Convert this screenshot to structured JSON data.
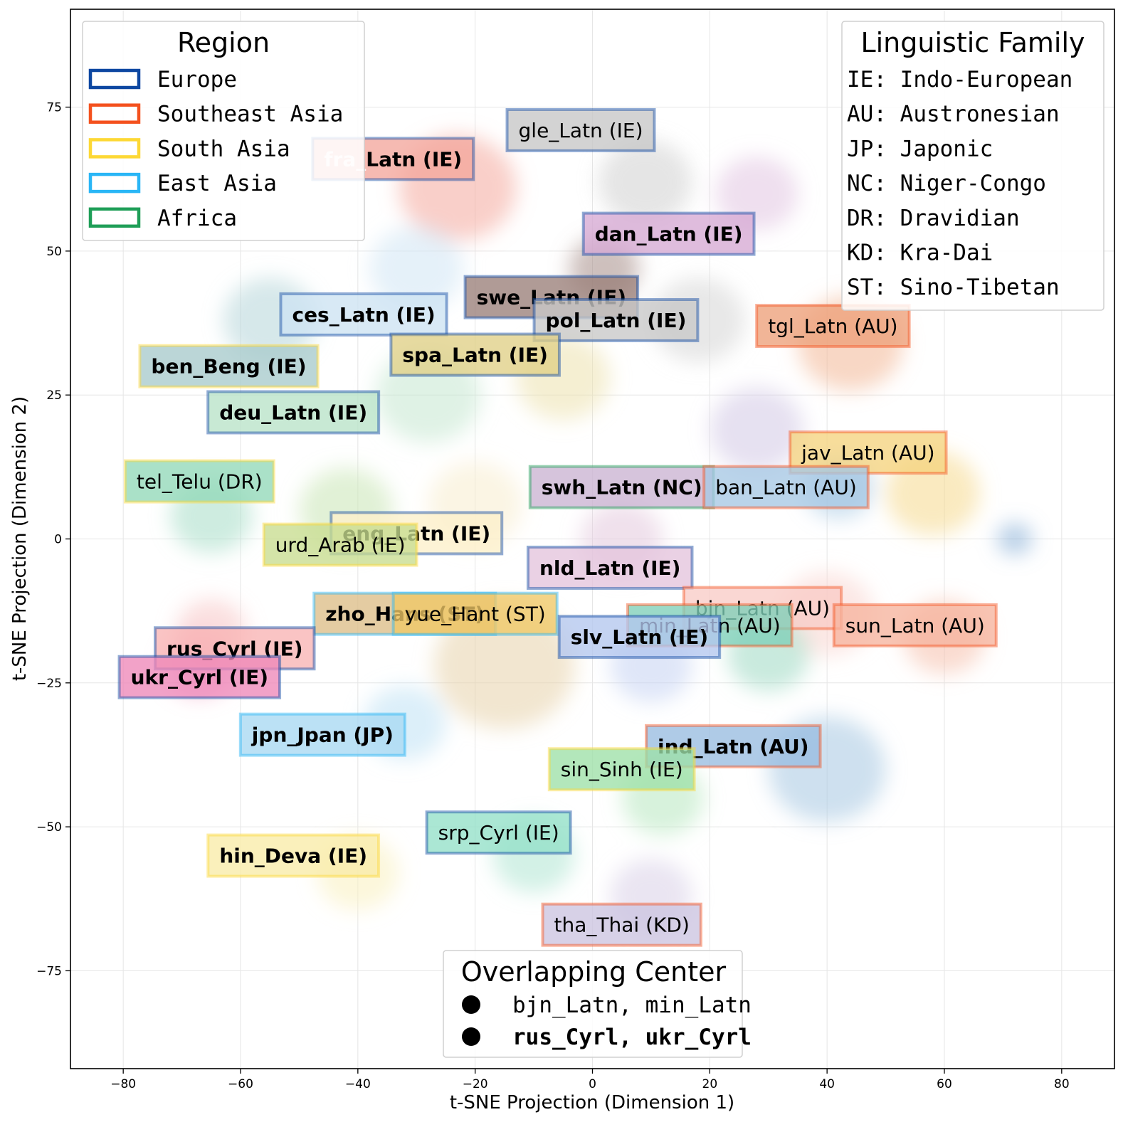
{
  "chart_data": {
    "type": "scatter",
    "subtype": "t-SNE density projection with language-cluster labels",
    "xlabel": "t-SNE Projection (Dimension 1)",
    "ylabel": "t-SNE Projection (Dimension 2)",
    "xlim": [
      -89,
      89
    ],
    "ylim": [
      -92,
      92
    ],
    "xticks": [
      -80,
      -60,
      -40,
      -20,
      0,
      20,
      40,
      60,
      80
    ],
    "yticks": [
      -75,
      -50,
      -25,
      0,
      25,
      50,
      75
    ],
    "grid": true,
    "region_colors": {
      "Europe": "#0d47a1",
      "Southeast Asia": "#f4511e",
      "South Asia": "#fdd835",
      "East Asia": "#29b6f6",
      "Africa": "#1e9e57"
    },
    "clusters": [
      {
        "label": "fra_Latn (IE)",
        "x": -34,
        "y": 66,
        "bold": true,
        "fill": "#f4a79c",
        "region": "Europe",
        "faded_prefix": true
      },
      {
        "label": "gle_Latn (IE)",
        "x": -2,
        "y": 71,
        "bold": false,
        "fill": "#c6c6c6",
        "region": "Europe"
      },
      {
        "label": "dan_Latn (IE)",
        "x": 13,
        "y": 53,
        "bold": true,
        "fill": "#d6a9d4",
        "region": "Europe"
      },
      {
        "label": "swe_Latn (IE)",
        "x": -7,
        "y": 42,
        "bold": true,
        "fill": "#9a7f79",
        "region": "Europe"
      },
      {
        "label": "ces_Latn (IE)",
        "x": -39,
        "y": 39,
        "bold": true,
        "fill": "#cde3f2",
        "region": "Europe"
      },
      {
        "label": "pol_Latn (IE)",
        "x": 4,
        "y": 38,
        "bold": true,
        "fill": "#c8c8c8",
        "region": "Europe"
      },
      {
        "label": "tgl_Latn (AU)",
        "x": 41,
        "y": 37,
        "bold": false,
        "fill": "#eda07a",
        "region": "Southeast Asia"
      },
      {
        "label": "spa_Latn (IE)",
        "x": -20,
        "y": 32,
        "bold": true,
        "fill": "#e0cf87",
        "region": "Europe"
      },
      {
        "label": "ben_Beng (IE)",
        "x": -62,
        "y": 30,
        "bold": true,
        "fill": "#a8cacc",
        "region": "South Asia"
      },
      {
        "label": "deu_Latn (IE)",
        "x": -51,
        "y": 22,
        "bold": true,
        "fill": "#b8e3c8",
        "region": "Europe"
      },
      {
        "label": "jav_Latn (AU)",
        "x": 47,
        "y": 15,
        "bold": false,
        "fill": "#f5d47f",
        "region": "Southeast Asia"
      },
      {
        "label": "tel_Telu (DR)",
        "x": -67,
        "y": 10,
        "bold": false,
        "fill": "#92d8b8",
        "region": "South Asia"
      },
      {
        "label": "swh_Latn (NC)",
        "x": 5,
        "y": 9,
        "bold": true,
        "fill": "#cbb3d2",
        "region": "Africa"
      },
      {
        "label": "ban_Latn (AU)",
        "x": 33,
        "y": 9,
        "bold": false,
        "fill": "#a6c8e4",
        "region": "Southeast Asia"
      },
      {
        "label": "eng_Latn (IE)",
        "x": -30,
        "y": 1,
        "bold": true,
        "fill": "#fcefcb",
        "region": "Europe"
      },
      {
        "label": "urd_Arab (IE)",
        "x": -43,
        "y": -1,
        "bold": false,
        "fill": "#c8dc8f",
        "region": "South Asia"
      },
      {
        "label": "nld_Latn (IE)",
        "x": 3,
        "y": -5,
        "bold": true,
        "fill": "#e4c4dc",
        "region": "Europe"
      },
      {
        "label": "bjn_Latn (AU)",
        "x": 29,
        "y": -12,
        "bold": false,
        "fill": "#f8ccc6",
        "region": "Southeast Asia"
      },
      {
        "label": "zho_Hans (ST)",
        "x": -32,
        "y": -13,
        "bold": true,
        "fill": "#ddbe88",
        "region": "East Asia"
      },
      {
        "label": "yue_Hant (ST)",
        "x": -20,
        "y": -13,
        "bold": false,
        "fill": "#f0c866",
        "region": "East Asia"
      },
      {
        "label": "min_Latn (AU)",
        "x": 20,
        "y": -15,
        "bold": false,
        "fill": "#7fd0b8",
        "region": "Southeast Asia"
      },
      {
        "label": "sun_Latn (AU)",
        "x": 55,
        "y": -15,
        "bold": false,
        "fill": "#f6b49e",
        "region": "Southeast Asia"
      },
      {
        "label": "slv_Latn (IE)",
        "x": 8,
        "y": -17,
        "bold": true,
        "fill": "#b4c6ee",
        "region": "Europe"
      },
      {
        "label": "rus_Cyrl (IE)",
        "x": -61,
        "y": -19,
        "bold": true,
        "fill": "#f8b4b4",
        "region": "Europe"
      },
      {
        "label": "ukr_Cyrl (IE)",
        "x": -67,
        "y": -24,
        "bold": true,
        "fill": "#ee88b8",
        "region": "Europe"
      },
      {
        "label": "jpn_Jpan (JP)",
        "x": -46,
        "y": -34,
        "bold": true,
        "fill": "#a8d8f2",
        "region": "East Asia"
      },
      {
        "label": "ind_Latn (AU)",
        "x": 24,
        "y": -36,
        "bold": true,
        "fill": "#98bde0",
        "region": "Southeast Asia"
      },
      {
        "label": "sin_Sinh (IE)",
        "x": 5,
        "y": -40,
        "bold": false,
        "fill": "#9ee0a8",
        "region": "South Asia"
      },
      {
        "label": "srp_Cyrl (IE)",
        "x": -16,
        "y": -51,
        "bold": false,
        "fill": "#94e0c8",
        "region": "Europe"
      },
      {
        "label": "hin_Deva (IE)",
        "x": -51,
        "y": -55,
        "bold": true,
        "fill": "#f8eca8",
        "region": "South Asia"
      },
      {
        "label": "tha_Thai (KD)",
        "x": 5,
        "y": -67,
        "bold": false,
        "fill": "#ccc4e0",
        "region": "Southeast Asia"
      }
    ],
    "density_blobs": [
      {
        "x": -23,
        "y": 61,
        "r": 10,
        "color": "#f4a79c"
      },
      {
        "x": 9,
        "y": 62,
        "r": 8,
        "color": "#cfcfcf"
      },
      {
        "x": 28,
        "y": 60,
        "r": 7,
        "color": "#e2c4e2"
      },
      {
        "x": 2,
        "y": 47,
        "r": 6,
        "color": "#a58c87"
      },
      {
        "x": -30,
        "y": 47,
        "r": 8,
        "color": "#cfe6f4"
      },
      {
        "x": 18,
        "y": 38,
        "r": 8,
        "color": "#d6d6d6"
      },
      {
        "x": 44,
        "y": 34,
        "r": 9,
        "color": "#f3b696"
      },
      {
        "x": -5,
        "y": 28,
        "r": 8,
        "color": "#ece1ad"
      },
      {
        "x": -55,
        "y": 38,
        "r": 8,
        "color": "#b4d6d8"
      },
      {
        "x": -28,
        "y": 25,
        "r": 9,
        "color": "#c4e8d0"
      },
      {
        "x": 28,
        "y": 19,
        "r": 8,
        "color": "#d2c8e6"
      },
      {
        "x": 58,
        "y": 8,
        "r": 8,
        "color": "#f6d98c"
      },
      {
        "x": 42,
        "y": 9,
        "r": 6,
        "color": "#a6c8e4"
      },
      {
        "x": 72,
        "y": 0,
        "r": 3,
        "color": "#7ea8d4"
      },
      {
        "x": -65,
        "y": 4,
        "r": 7,
        "color": "#a6ddc6"
      },
      {
        "x": -42,
        "y": 5,
        "r": 8,
        "color": "#c8e6b4"
      },
      {
        "x": -20,
        "y": 6,
        "r": 8,
        "color": "#f7eccd"
      },
      {
        "x": 5,
        "y": 0,
        "r": 7,
        "color": "#e4c8dc"
      },
      {
        "x": 40,
        "y": -13,
        "r": 8,
        "color": "#f9d6cf"
      },
      {
        "x": 60,
        "y": -17,
        "r": 7,
        "color": "#f6c0ac"
      },
      {
        "x": 30,
        "y": -20,
        "r": 7,
        "color": "#9dd8c3"
      },
      {
        "x": 10,
        "y": -22,
        "r": 7,
        "color": "#c4d2f2"
      },
      {
        "x": -15,
        "y": -22,
        "r": 12,
        "color": "#e7d2aa"
      },
      {
        "x": -65,
        "y": -16,
        "r": 6,
        "color": "#f8c4c4"
      },
      {
        "x": -67,
        "y": -22,
        "r": 6,
        "color": "#f2a8c8"
      },
      {
        "x": -32,
        "y": -32,
        "r": 7,
        "color": "#bfe2f4"
      },
      {
        "x": 40,
        "y": -40,
        "r": 10,
        "color": "#a6c6e2"
      },
      {
        "x": 12,
        "y": -45,
        "r": 7,
        "color": "#b6e8bf"
      },
      {
        "x": -10,
        "y": -55,
        "r": 7,
        "color": "#aee6d2"
      },
      {
        "x": -40,
        "y": -58,
        "r": 7,
        "color": "#faf0be"
      },
      {
        "x": 10,
        "y": -62,
        "r": 7,
        "color": "#d8d0e8"
      }
    ],
    "region_legend": {
      "title": "Region",
      "entries": [
        "Europe",
        "Southeast Asia",
        "South Asia",
        "East Asia",
        "Africa"
      ]
    },
    "family_legend": {
      "title": "Linguistic Family",
      "entries": [
        "IE: Indo-European",
        "AU: Austronesian",
        "JP: Japonic",
        "NC: Niger-Congo",
        "DR: Dravidian",
        "KD: Kra-Dai",
        "ST: Sino-Tibetan"
      ]
    },
    "overlap_legend": {
      "title": "Overlapping Center",
      "entries": [
        {
          "text": "bjn_Latn, min_Latn",
          "bold": false
        },
        {
          "text": "rus_Cyrl, ukr_Cyrl",
          "bold": true
        }
      ]
    }
  }
}
